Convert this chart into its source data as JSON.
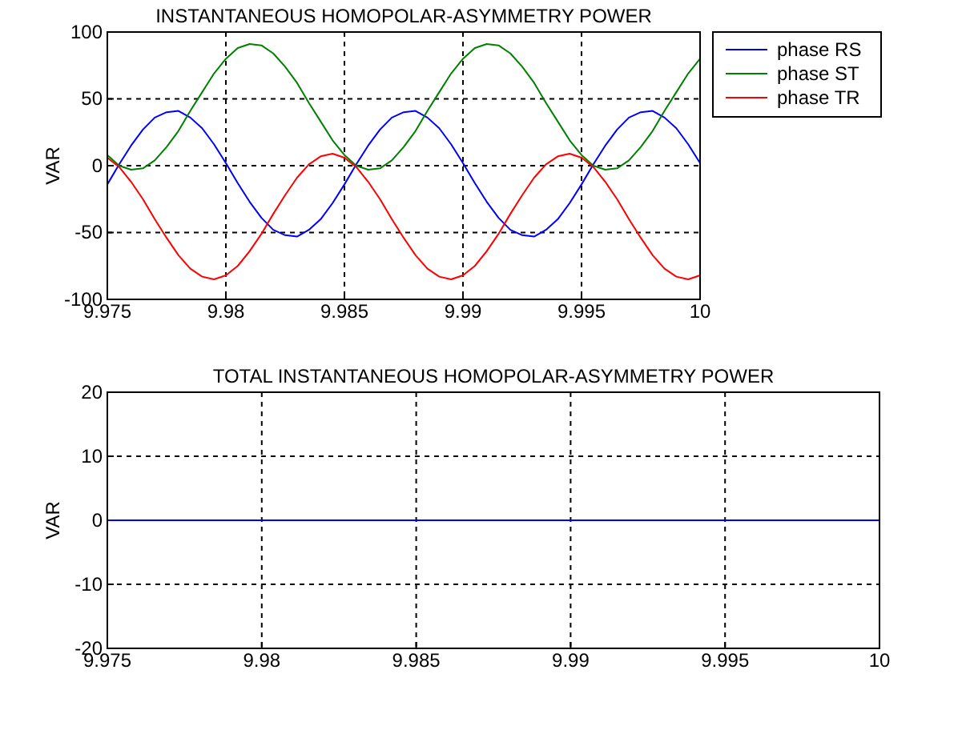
{
  "chart_data": [
    {
      "type": "line",
      "title": "INSTANTANEOUS HOMOPOLAR-ASYMMETRY POWER",
      "ylabel": "VAR",
      "x": [
        9.975,
        9.9755,
        9.976,
        9.9765,
        9.977,
        9.9775,
        9.978,
        9.9785,
        9.979,
        9.9795,
        9.98,
        9.9805,
        9.981,
        9.9815,
        9.982,
        9.9825,
        9.983,
        9.9835,
        9.984,
        9.9845,
        9.985,
        9.9855,
        9.986,
        9.9865,
        9.987,
        9.9875,
        9.988,
        9.9885,
        9.989,
        9.9895,
        9.99,
        9.9905,
        9.991,
        9.9915,
        9.992,
        9.9925,
        9.993,
        9.9935,
        9.994,
        9.9945,
        9.995,
        9.9955,
        9.996,
        9.9965,
        9.997,
        9.9975,
        9.998,
        9.9985,
        9.999,
        9.9995,
        10
      ],
      "series": [
        {
          "name": "phase RS",
          "color": "#0000ff",
          "values": [
            -14,
            1,
            15,
            27,
            36,
            40,
            41,
            36,
            28,
            16,
            2,
            -13,
            -27,
            -39,
            -48,
            -52,
            -53,
            -48,
            -40,
            -28,
            -14,
            1,
            15,
            27,
            36,
            40,
            41,
            36,
            28,
            16,
            2,
            -13,
            -27,
            -39,
            -48,
            -52,
            -53,
            -48,
            -40,
            -28,
            -14,
            1,
            15,
            27,
            36,
            40,
            41,
            36,
            28,
            16,
            2
          ]
        },
        {
          "name": "phase ST",
          "color": "#008000",
          "values": [
            8,
            0,
            -3,
            -2,
            4,
            14,
            26,
            41,
            55,
            69,
            80,
            88,
            91,
            90,
            84,
            74,
            62,
            47,
            33,
            19,
            8,
            0,
            -3,
            -2,
            4,
            14,
            26,
            41,
            55,
            69,
            80,
            88,
            91,
            90,
            84,
            74,
            62,
            47,
            33,
            19,
            8,
            0,
            -3,
            -2,
            4,
            14,
            26,
            41,
            55,
            69,
            80
          ]
        },
        {
          "name": "phase TR",
          "color": "#ff0000",
          "values": [
            6,
            -1,
            -12,
            -25,
            -40,
            -54,
            -67,
            -77,
            -83,
            -85,
            -82,
            -75,
            -64,
            -51,
            -36,
            -22,
            -9,
            1,
            7,
            9,
            6,
            -1,
            -12,
            -25,
            -40,
            -54,
            -67,
            -77,
            -83,
            -85,
            -82,
            -75,
            -64,
            -51,
            -36,
            -22,
            -9,
            1,
            7,
            9,
            6,
            -1,
            -12,
            -25,
            -40,
            -54,
            -67,
            -77,
            -83,
            -85,
            -82
          ]
        }
      ],
      "xlim": [
        9.975,
        10
      ],
      "xticks": [
        9.975,
        9.98,
        9.985,
        9.99,
        9.995,
        10
      ],
      "ylim": [
        -100,
        100
      ],
      "yticks": [
        -100,
        -50,
        0,
        50,
        100
      ],
      "grid": true,
      "legend": "top right"
    },
    {
      "type": "line",
      "title": "TOTAL INSTANTANEOUS HOMOPOLAR-ASYMMETRY POWER",
      "ylabel": "VAR",
      "x": [
        9.975,
        10
      ],
      "series": [
        {
          "color": "#0000ff",
          "values": [
            0,
            0
          ]
        }
      ],
      "xlim": [
        9.975,
        10
      ],
      "xticks": [
        9.975,
        9.98,
        9.985,
        9.99,
        9.995,
        10
      ],
      "ylim": [
        -20,
        20
      ],
      "yticks": [
        -20,
        -10,
        0,
        10,
        20
      ],
      "grid": true
    }
  ]
}
